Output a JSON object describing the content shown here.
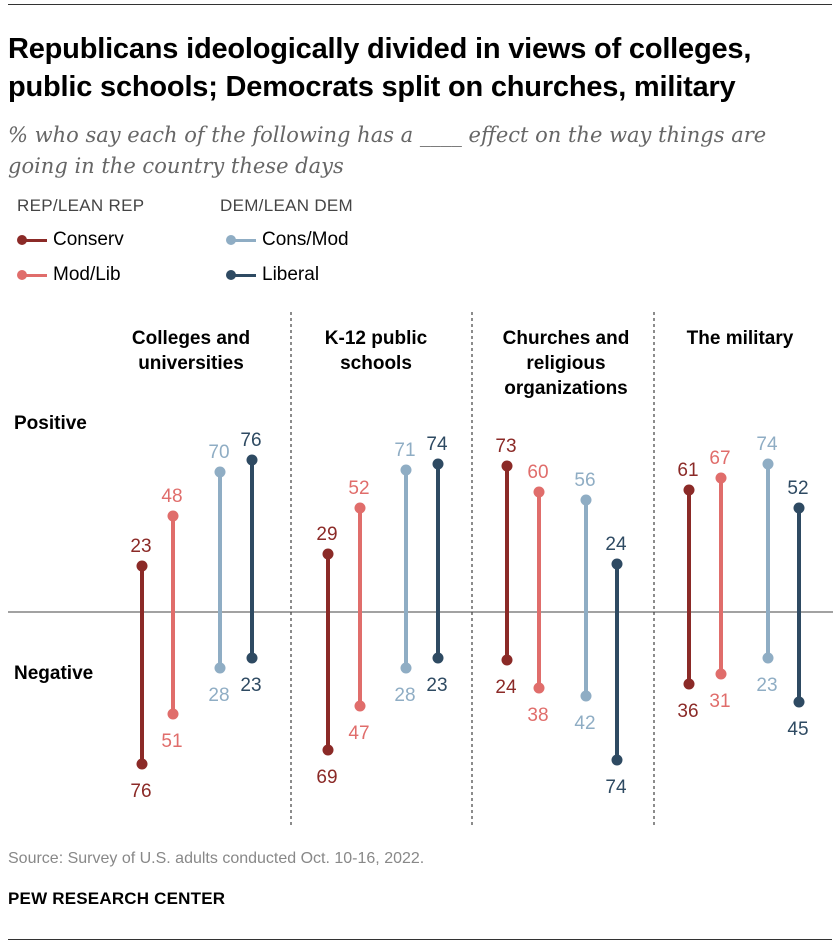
{
  "title": "Republicans ideologically divided in views of colleges, public schools; Democrats split on churches, military",
  "subtitle": "% who say each of the following has a ____ effect on the way things are going in the country these days",
  "legend": {
    "rep_heading": "REP/LEAN REP",
    "dem_heading": "DEM/LEAN DEM",
    "conserv": "Conserv",
    "modlib": "Mod/Lib",
    "consmod": "Cons/Mod",
    "liberal": "Liberal"
  },
  "row_labels": {
    "positive": "Positive",
    "negative": "Negative"
  },
  "colors": {
    "conserv": "#8b2a27",
    "modlib": "#e06d6b",
    "consmod": "#8fadc4",
    "liberal": "#2e4a62"
  },
  "chart_data": {
    "type": "dot-range",
    "series": [
      {
        "key": "conserv",
        "name": "Conserv",
        "party": "REP/LEAN REP"
      },
      {
        "key": "modlib",
        "name": "Mod/Lib",
        "party": "REP/LEAN REP"
      },
      {
        "key": "consmod",
        "name": "Cons/Mod",
        "party": "DEM/LEAN DEM"
      },
      {
        "key": "liberal",
        "name": "Liberal",
        "party": "DEM/LEAN DEM"
      }
    ],
    "panels": [
      {
        "title": "Colleges and universities",
        "positive": {
          "conserv": 23,
          "modlib": 48,
          "consmod": 70,
          "liberal": 76
        },
        "negative": {
          "conserv": 76,
          "modlib": 51,
          "consmod": 28,
          "liberal": 23
        }
      },
      {
        "title": "K-12 public schools",
        "positive": {
          "conserv": 29,
          "modlib": 52,
          "consmod": 71,
          "liberal": 74
        },
        "negative": {
          "conserv": 69,
          "modlib": 47,
          "consmod": 28,
          "liberal": 23
        }
      },
      {
        "title": "Churches and religious organizations",
        "positive": {
          "conserv": 73,
          "modlib": 60,
          "consmod": 56,
          "liberal": 24
        },
        "negative": {
          "conserv": 24,
          "modlib": 38,
          "consmod": 42,
          "liberal": 74
        }
      },
      {
        "title": "The military",
        "positive": {
          "conserv": 61,
          "modlib": 67,
          "consmod": 74,
          "liberal": 52
        },
        "negative": {
          "conserv": 36,
          "modlib": 31,
          "consmod": 23,
          "liberal": 45
        }
      }
    ]
  },
  "source": "Source: Survey of U.S. adults conducted Oct. 10-16, 2022.",
  "brand": "PEW RESEARCH CENTER"
}
